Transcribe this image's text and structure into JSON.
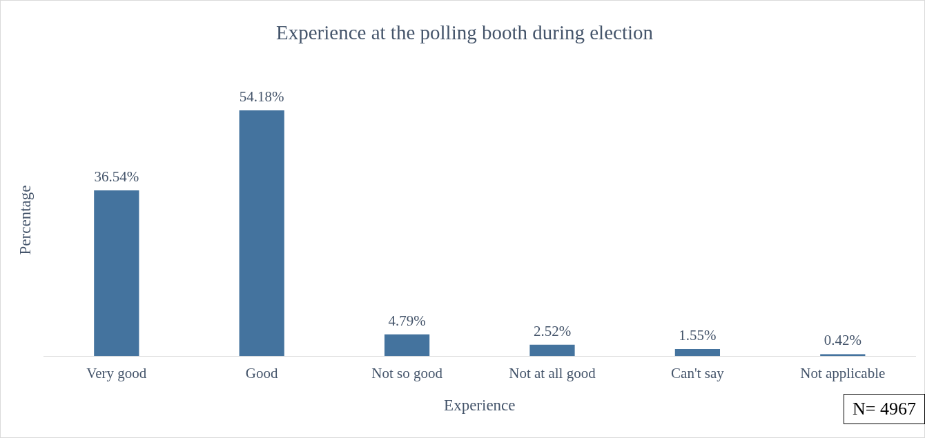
{
  "chart_data": {
    "type": "bar",
    "title": "Experience at the polling booth during election",
    "xlabel": "Experience",
    "ylabel": "Percentage",
    "categories": [
      "Very good",
      "Good",
      "Not so good",
      "Not at all good",
      "Can't say",
      "Not applicable"
    ],
    "values": [
      36.54,
      54.18,
      4.79,
      2.52,
      1.55,
      0.42
    ],
    "value_labels": [
      "36.54%",
      "54.18%",
      "4.79%",
      "2.52%",
      "1.55%",
      "0.42%"
    ],
    "color": "#44739e",
    "annotations": [
      "N=  4967"
    ]
  }
}
